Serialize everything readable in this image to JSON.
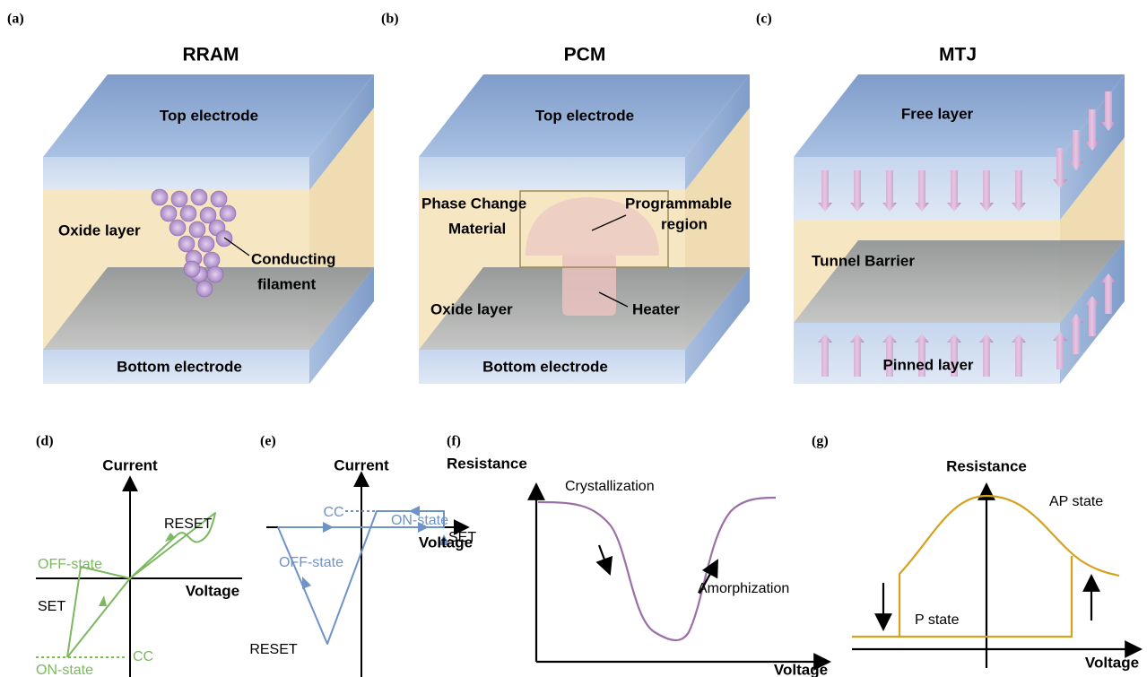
{
  "panels": [
    {
      "label": "(a)",
      "title": "RRAM",
      "texts": [
        "Top electrode",
        "Oxide layer",
        "Conducting",
        "filament",
        "Bottom electrode"
      ]
    },
    {
      "label": "(b)",
      "title": "PCM",
      "texts": [
        "Top electrode",
        "Phase Change",
        "Material",
        "Programmable",
        "region",
        "Oxide layer",
        "Heater",
        "Bottom electrode"
      ]
    },
    {
      "label": "(c)",
      "title": "MTJ",
      "texts": [
        "Free layer",
        "Tunnel Barrier",
        "Pinned layer"
      ]
    },
    {
      "label": "(d)",
      "y_axis": "Current",
      "x_axis": "Voltage",
      "texts": [
        "RESET",
        "OFF-state",
        "SET",
        "CC",
        "ON-state"
      ]
    },
    {
      "label": "(e)",
      "y_axis": "Current",
      "x_axis": "Voltage",
      "texts": [
        "ON-state",
        "CC",
        "SET",
        "OFF-state",
        "RESET"
      ]
    },
    {
      "label": "(f)",
      "y_axis": "Resistance",
      "x_axis": "Voltage",
      "texts": [
        "Crystallization",
        "Amorphization"
      ]
    },
    {
      "label": "(g)",
      "y_axis": "Resistance",
      "x_axis": "Voltage",
      "texts": [
        "AP state",
        "P state"
      ]
    }
  ]
}
